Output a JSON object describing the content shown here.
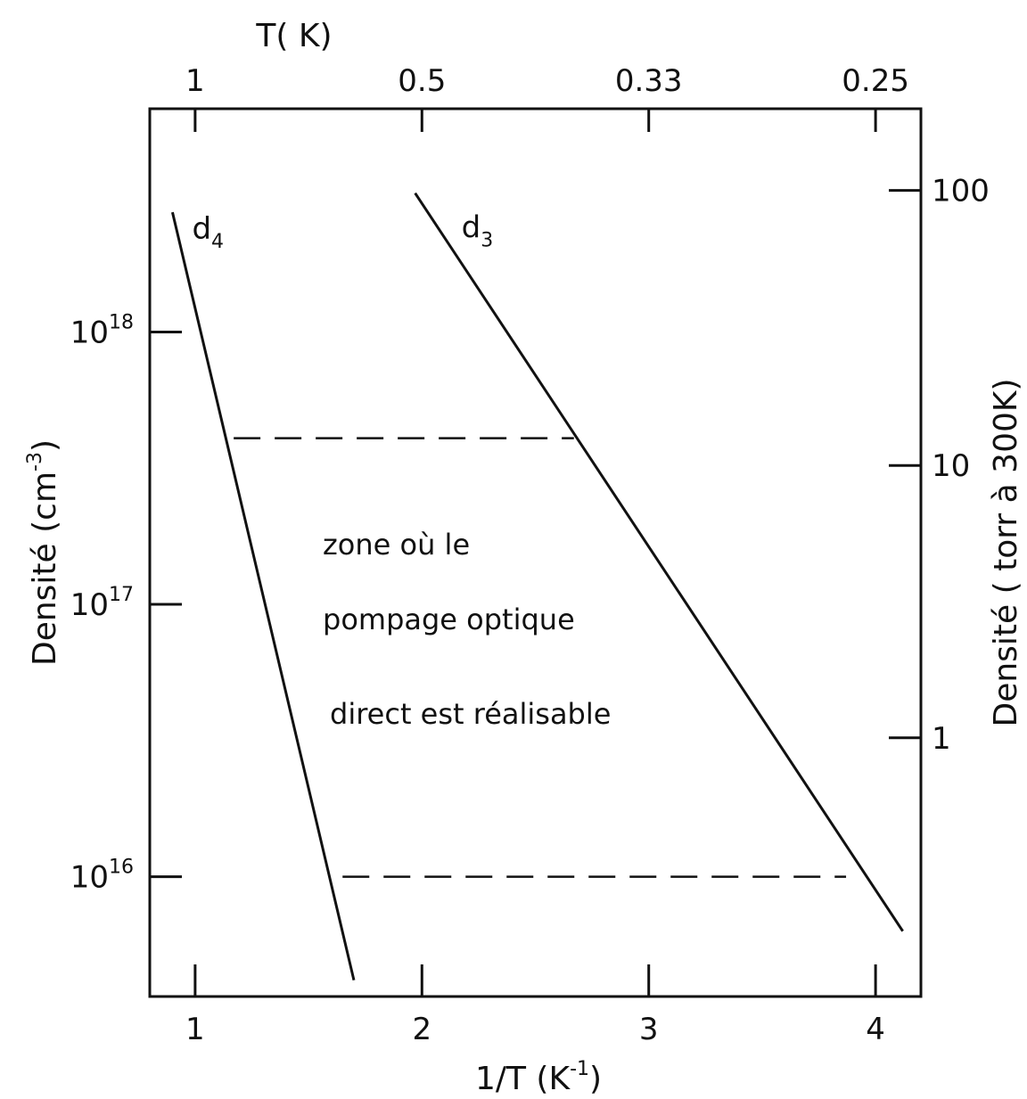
{
  "chart_data": {
    "type": "line",
    "xlabel_base": "1/T  (K",
    "xlabel_exp": "-1",
    "xlabel_end": ")",
    "top_axis_label": "T( K)",
    "ylabel_base": "Densité  (cm",
    "ylabel_exp": "-3",
    "ylabel_end": ")",
    "right_ylabel": "Densité ( torr à 300K)",
    "xlim": [
      0.8,
      4.2
    ],
    "ylim_log10": [
      15.56,
      18.82
    ],
    "y_scale": "log",
    "x_ticks": [
      {
        "value": 1,
        "label": "1"
      },
      {
        "value": 2,
        "label": "2"
      },
      {
        "value": 3,
        "label": "3"
      },
      {
        "value": 4,
        "label": "4"
      }
    ],
    "top_ticks": [
      {
        "value": 1,
        "label": "1"
      },
      {
        "value": 2,
        "label": "0.5"
      },
      {
        "value": 3,
        "label": "0.33"
      },
      {
        "value": 4,
        "label": "0.25"
      }
    ],
    "y_ticks": [
      {
        "log10": 16,
        "base": "10",
        "exp": "16"
      },
      {
        "log10": 17,
        "base": "10",
        "exp": "17"
      },
      {
        "log10": 18,
        "base": "10",
        "exp": "18"
      }
    ],
    "right_ticks": [
      {
        "log10": 16.51,
        "label": "1"
      },
      {
        "log10": 17.51,
        "label": "10"
      },
      {
        "log10": 18.52,
        "label": "100"
      }
    ],
    "series": [
      {
        "name": "d4",
        "label_base": "d",
        "label_sub": "4",
        "x": [
          0.9,
          1.7
        ],
        "log10_y": [
          18.44,
          15.62
        ]
      },
      {
        "name": "d3",
        "label_base": "d",
        "label_sub": "3",
        "x": [
          1.97,
          4.12
        ],
        "log10_y": [
          18.51,
          15.8
        ]
      }
    ],
    "reference_lines": [
      {
        "log10_y": 17.61,
        "x_start": 1.17,
        "x_end": 2.67,
        "style": "dashed"
      },
      {
        "log10_y": 16.0,
        "x_start": 1.65,
        "x_end": 3.87,
        "style": "dashed"
      }
    ],
    "annotation_lines": [
      "zone où le",
      "pompage optique",
      "direct est réalisable"
    ]
  }
}
